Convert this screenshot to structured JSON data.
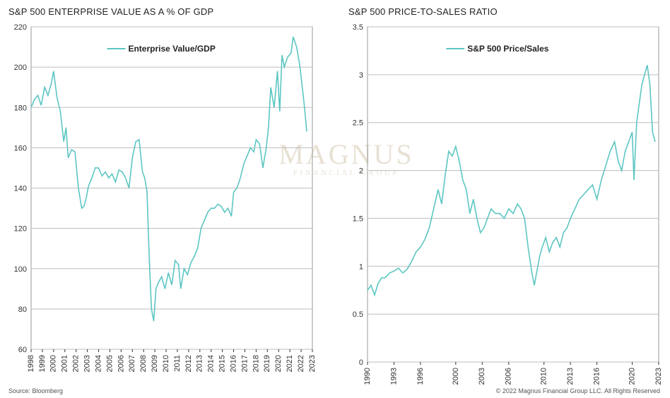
{
  "charts": {
    "left_title": "S&P 500 ENTERPRISE VALUE AS A % OF GDP",
    "right_title": "S&P 500 PRICE-TO-SALES RATIO"
  },
  "footer": {
    "source": "Source: Bloomberg",
    "copyright": "© 2022 Magnus Financial Group LLC. All Rights Reserved"
  },
  "watermark": {
    "main": "MAGNUS",
    "sub": "FINANCIAL GROUP"
  },
  "colors": {
    "series": "#5cc6c3",
    "grid": "#bdbdbd",
    "axis": "#333333"
  },
  "chart_data": [
    {
      "type": "line",
      "title": "S&P 500 ENTERPRISE VALUE AS A % OF GDP",
      "xlim": [
        1998,
        2023
      ],
      "ylim": [
        60,
        220
      ],
      "xticks": [
        1998,
        1999,
        2000,
        2001,
        2002,
        2003,
        2004,
        2005,
        2006,
        2007,
        2008,
        2009,
        2010,
        2011,
        2012,
        2013,
        2014,
        2015,
        2016,
        2017,
        2018,
        2019,
        2020,
        2021,
        2022,
        2023
      ],
      "yticks": [
        60,
        80,
        100,
        120,
        140,
        160,
        180,
        200,
        220
      ],
      "grid": true,
      "legend": "top-center",
      "series": [
        {
          "name": "Enterprise Value/GDP",
          "x": [
            1998.0,
            1998.3,
            1998.6,
            1998.9,
            1999.2,
            1999.5,
            1999.8,
            2000.0,
            2000.3,
            2000.6,
            2000.9,
            2001.1,
            2001.3,
            2001.6,
            2001.9,
            2002.2,
            2002.5,
            2002.7,
            2002.9,
            2003.1,
            2003.4,
            2003.7,
            2004.0,
            2004.3,
            2004.6,
            2004.9,
            2005.2,
            2005.5,
            2005.8,
            2006.1,
            2006.4,
            2006.7,
            2007.0,
            2007.3,
            2007.6,
            2007.9,
            2008.1,
            2008.3,
            2008.5,
            2008.7,
            2008.9,
            2009.1,
            2009.3,
            2009.6,
            2009.9,
            2010.2,
            2010.5,
            2010.8,
            2011.1,
            2011.3,
            2011.6,
            2011.9,
            2012.2,
            2012.5,
            2012.8,
            2013.1,
            2013.4,
            2013.7,
            2014.0,
            2014.3,
            2014.6,
            2014.9,
            2015.2,
            2015.5,
            2015.8,
            2016.0,
            2016.3,
            2016.6,
            2016.9,
            2017.2,
            2017.5,
            2017.8,
            2018.0,
            2018.3,
            2018.6,
            2018.9,
            2019.1,
            2019.3,
            2019.6,
            2019.9,
            2020.1,
            2020.3,
            2020.5,
            2020.8,
            2021.1,
            2021.3,
            2021.6,
            2021.9,
            2022.1,
            2022.3,
            2022.5
          ],
          "y": [
            180,
            184,
            186,
            181,
            190,
            186,
            192,
            198,
            185,
            178,
            163,
            170,
            155,
            159,
            158,
            140,
            130,
            131,
            135,
            141,
            145,
            150,
            150,
            146,
            148,
            145,
            147,
            143,
            149,
            148,
            145,
            140,
            155,
            163,
            164,
            148,
            145,
            138,
            105,
            80,
            74,
            90,
            93,
            96,
            90,
            98,
            92,
            104,
            102,
            90,
            100,
            97,
            103,
            106,
            110,
            120,
            124,
            128,
            130,
            130,
            132,
            131,
            128,
            130,
            126,
            138,
            140,
            145,
            152,
            156,
            160,
            158,
            164,
            162,
            150,
            160,
            170,
            190,
            180,
            198,
            178,
            206,
            200,
            205,
            207,
            215,
            210,
            200,
            190,
            180,
            168
          ]
        }
      ]
    },
    {
      "type": "line",
      "title": "S&P 500 PRICE-TO-SALES RATIO",
      "xlim": [
        1990,
        2023
      ],
      "ylim": [
        0,
        3.5
      ],
      "xticks": [
        1990,
        1993,
        1996,
        2000,
        2003,
        2006,
        2010,
        2013,
        2016,
        2020,
        2023
      ],
      "yticks": [
        0,
        0.5,
        1,
        1.5,
        2,
        2.5,
        3,
        3.5
      ],
      "grid": true,
      "legend": "top-center",
      "series": [
        {
          "name": "S&P 500 Price/Sales",
          "x": [
            1990.0,
            1990.4,
            1990.8,
            1991.2,
            1991.6,
            1992.0,
            1992.5,
            1993.0,
            1993.5,
            1994.0,
            1994.5,
            1995.0,
            1995.5,
            1996.0,
            1996.5,
            1997.0,
            1997.5,
            1998.0,
            1998.4,
            1998.8,
            1999.2,
            1999.6,
            2000.0,
            2000.4,
            2000.8,
            2001.2,
            2001.6,
            2002.0,
            2002.4,
            2002.8,
            2003.2,
            2003.6,
            2004.0,
            2004.5,
            2005.0,
            2005.5,
            2006.0,
            2006.5,
            2007.0,
            2007.4,
            2007.8,
            2008.2,
            2008.6,
            2008.9,
            2009.2,
            2009.5,
            2009.8,
            2010.2,
            2010.6,
            2011.0,
            2011.4,
            2011.8,
            2012.2,
            2012.6,
            2013.0,
            2013.5,
            2014.0,
            2014.5,
            2015.0,
            2015.5,
            2016.0,
            2016.5,
            2017.0,
            2017.5,
            2018.0,
            2018.4,
            2018.8,
            2019.2,
            2019.6,
            2020.0,
            2020.2,
            2020.5,
            2020.8,
            2021.1,
            2021.4,
            2021.7,
            2022.0,
            2022.3,
            2022.6
          ],
          "y": [
            0.75,
            0.8,
            0.7,
            0.82,
            0.88,
            0.88,
            0.93,
            0.95,
            0.98,
            0.93,
            0.97,
            1.05,
            1.15,
            1.2,
            1.28,
            1.4,
            1.6,
            1.8,
            1.65,
            1.95,
            2.2,
            2.15,
            2.25,
            2.1,
            1.9,
            1.8,
            1.55,
            1.7,
            1.5,
            1.35,
            1.4,
            1.5,
            1.6,
            1.55,
            1.55,
            1.5,
            1.6,
            1.55,
            1.65,
            1.6,
            1.5,
            1.2,
            0.95,
            0.8,
            0.95,
            1.1,
            1.2,
            1.3,
            1.15,
            1.25,
            1.3,
            1.2,
            1.35,
            1.4,
            1.5,
            1.6,
            1.7,
            1.75,
            1.8,
            1.85,
            1.7,
            1.9,
            2.05,
            2.2,
            2.3,
            2.1,
            2.0,
            2.2,
            2.3,
            2.4,
            1.9,
            2.5,
            2.7,
            2.9,
            3.0,
            3.1,
            2.9,
            2.4,
            2.3
          ]
        }
      ]
    }
  ]
}
